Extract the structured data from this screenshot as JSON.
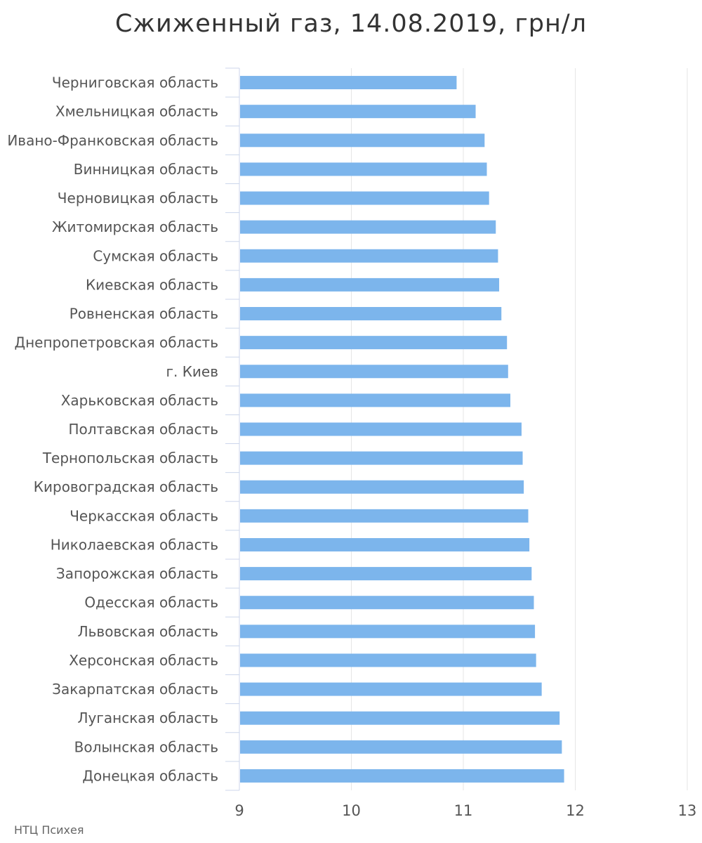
{
  "chart_data": {
    "type": "bar",
    "orientation": "horizontal",
    "title": "Сжиженный газ, 14.08.2019, грн/л",
    "categories": [
      "Черниговская область",
      "Хмельницкая область",
      "Ивано-Франковская область",
      "Винницкая область",
      "Черновицкая область",
      "Житомирская область",
      "Сумская область",
      "Киевская область",
      "Ровненская область",
      "Днепропетровская область",
      "г. Киев",
      "Харьковская область",
      "Полтавская область",
      "Тернопольская область",
      "Кировоградская область",
      "Черкасская область",
      "Николаевская область",
      "Запорожская область",
      "Одесская область",
      "Львовская область",
      "Херсонская область",
      "Закарпатская область",
      "Луганская область",
      "Волынская область",
      "Донецкая область"
    ],
    "values": [
      10.94,
      11.11,
      11.19,
      11.21,
      11.23,
      11.29,
      11.31,
      11.32,
      11.34,
      11.39,
      11.4,
      11.42,
      11.52,
      11.53,
      11.54,
      11.58,
      11.59,
      11.61,
      11.63,
      11.64,
      11.65,
      11.7,
      11.86,
      11.88,
      11.9
    ],
    "xlim": [
      9,
      13
    ],
    "xticks": [
      "9",
      "10",
      "11",
      "12",
      "13"
    ],
    "grid": true,
    "bar_color": "#7cb5ec"
  },
  "source": "НТЦ Психея"
}
